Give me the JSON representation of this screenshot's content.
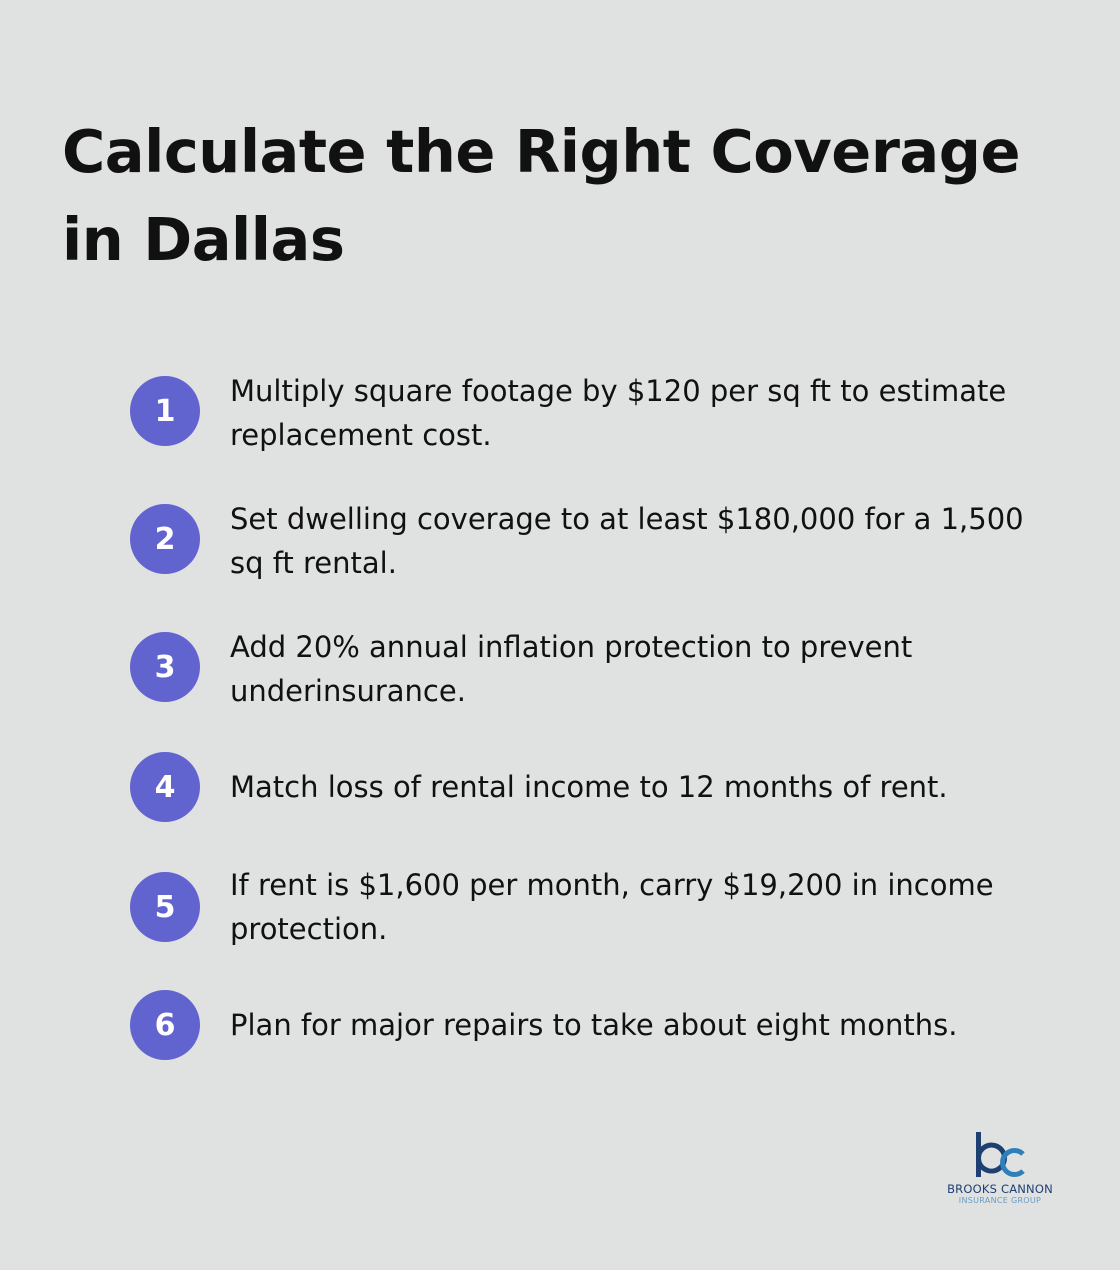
{
  "title": "Calculate the Right Coverage in Dallas",
  "steps": [
    {
      "number": "1",
      "text": "Multiply square footage by $120 per sq ft to estimate replacement cost."
    },
    {
      "number": "2",
      "text": "Set dwelling coverage to at least $180,000 for a 1,500 sq ft rental."
    },
    {
      "number": "3",
      "text": "Add 20% annual inflation protection to prevent underinsurance."
    },
    {
      "number": "4",
      "text": "Match loss of rental income to 12 months of rent."
    },
    {
      "number": "5",
      "text": "If rent is $1,600 per month, carry $19,200 in income protection."
    },
    {
      "number": "6",
      "text": "Plan for major repairs to take about eight months."
    }
  ],
  "logo": {
    "name": "BROOKS CANNON",
    "subtitle": "INSURANCE GROUP",
    "mark": "bc"
  },
  "colors": {
    "background": "#e0e2e1",
    "accent": "#6163cf",
    "logo_dark": "#1d3f72",
    "logo_light": "#2f7fb8"
  }
}
